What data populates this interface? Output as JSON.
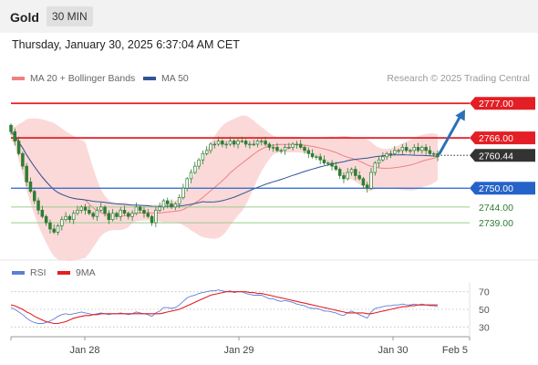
{
  "header": {
    "instrument": "Gold",
    "interval": "30 MIN",
    "datetime": "Thursday, January 30, 2025 6:37:04 AM CET"
  },
  "legend": {
    "ma20": "MA 20 + Bollinger Bands",
    "ma50": "MA 50",
    "credit": "Research © 2025 Trading Central"
  },
  "rsi_legend": {
    "rsi": "RSI",
    "ma9": "9MA"
  },
  "colors": {
    "resistance": "#e31e24",
    "support": "#2563c9",
    "target": "#5aa55a",
    "candle": "#2e7d32",
    "bollinger": "#f9cccc",
    "ma20": "#f08080",
    "ma50": "#2f5597",
    "rsi": "#5b7fd6",
    "rsi_ma": "#e31e24",
    "current": "#333333",
    "arrow": "#2d6fb8"
  },
  "chart_data": [
    {
      "type": "candlestick",
      "ylim": [
        2728,
        2782
      ],
      "x_ticks": [
        "Jan 28",
        "Jan 29",
        "Jan 30",
        "Feb 5"
      ],
      "levels": [
        {
          "value": 2777.0,
          "label": "2777.00",
          "kind": "resistance"
        },
        {
          "value": 2766.0,
          "label": "2766.00",
          "kind": "resistance"
        },
        {
          "value": 2760.44,
          "label": "2760.44",
          "kind": "current"
        },
        {
          "value": 2750.0,
          "label": "2750.00",
          "kind": "support"
        },
        {
          "value": 2744.0,
          "label": "2744.00",
          "kind": "target"
        },
        {
          "value": 2739.0,
          "label": "2739.00",
          "kind": "target"
        }
      ],
      "closes": [
        2768,
        2765,
        2761,
        2757,
        2752,
        2749,
        2746,
        2743,
        2741,
        2739,
        2737,
        2736,
        2738,
        2740,
        2741,
        2740,
        2742,
        2743,
        2744,
        2743,
        2742,
        2741,
        2743,
        2744,
        2742,
        2740,
        2742,
        2741,
        2743,
        2742,
        2741,
        2742,
        2744,
        2743,
        2742,
        2741,
        2739,
        2743,
        2744,
        2746,
        2745,
        2744,
        2745,
        2747,
        2750,
        2753,
        2755,
        2757,
        2759,
        2761,
        2762,
        2764,
        2764,
        2765,
        2764,
        2764,
        2765,
        2764,
        2765,
        2765,
        2764,
        2764,
        2764,
        2765,
        2765,
        2764,
        2763,
        2763,
        2762,
        2762,
        2763,
        2763,
        2764,
        2764,
        2763,
        2762,
        2761,
        2760,
        2760,
        2759,
        2758,
        2758,
        2757,
        2756,
        2754,
        2753,
        2755,
        2756,
        2754,
        2753,
        2751,
        2750,
        2755,
        2758,
        2759,
        2760,
        2761,
        2761,
        2762,
        2762,
        2763,
        2762,
        2762,
        2763,
        2762,
        2763,
        2762,
        2761,
        2761,
        2760
      ],
      "last_close": 2760.44,
      "target_arrow": {
        "from": 2761.0,
        "to": 2775.0
      }
    },
    {
      "type": "line",
      "name": "RSI",
      "ylim": [
        20,
        80
      ],
      "y_ticks": [
        70,
        50,
        30
      ],
      "rsi": [
        52,
        50,
        47,
        44,
        40,
        37,
        35,
        34,
        34,
        35,
        37,
        39,
        42,
        44,
        45,
        44,
        45,
        46,
        47,
        46,
        45,
        44,
        45,
        46,
        45,
        44,
        45,
        45,
        46,
        45,
        44,
        45,
        47,
        46,
        45,
        44,
        42,
        46,
        48,
        52,
        52,
        51,
        52,
        55,
        59,
        63,
        65,
        66,
        68,
        69,
        70,
        71,
        71,
        72,
        71,
        70,
        71,
        69,
        70,
        70,
        68,
        67,
        66,
        66,
        66,
        64,
        62,
        62,
        60,
        59,
        60,
        59,
        58,
        56,
        55,
        54,
        52,
        51,
        51,
        50,
        48,
        48,
        47,
        46,
        44,
        43,
        46,
        48,
        46,
        44,
        42,
        40,
        47,
        51,
        52,
        53,
        54,
        54,
        55,
        55,
        56,
        55,
        55,
        56,
        55,
        56,
        55,
        54,
        54,
        53
      ],
      "ma9": [
        55,
        54,
        52,
        50,
        47,
        45,
        42,
        40,
        38,
        36,
        35,
        34,
        34,
        35,
        36,
        38,
        40,
        41,
        42,
        43,
        43,
        44,
        44,
        45,
        45,
        45,
        45,
        45,
        45,
        45,
        45,
        45,
        45,
        45,
        45,
        45,
        45,
        45,
        45,
        46,
        47,
        48,
        49,
        50,
        52,
        54,
        56,
        58,
        60,
        62,
        64,
        66,
        67,
        68,
        69,
        70,
        70,
        70,
        70,
        70,
        70,
        69,
        69,
        68,
        68,
        67,
        66,
        65,
        64,
        63,
        62,
        61,
        60,
        59,
        58,
        57,
        56,
        55,
        54,
        53,
        52,
        51,
        50,
        49,
        48,
        47,
        46,
        46,
        46,
        46,
        46,
        45,
        45,
        46,
        47,
        48,
        49,
        50,
        51,
        52,
        53,
        53,
        54,
        54,
        55,
        55,
        55,
        55,
        55,
        55
      ]
    }
  ]
}
